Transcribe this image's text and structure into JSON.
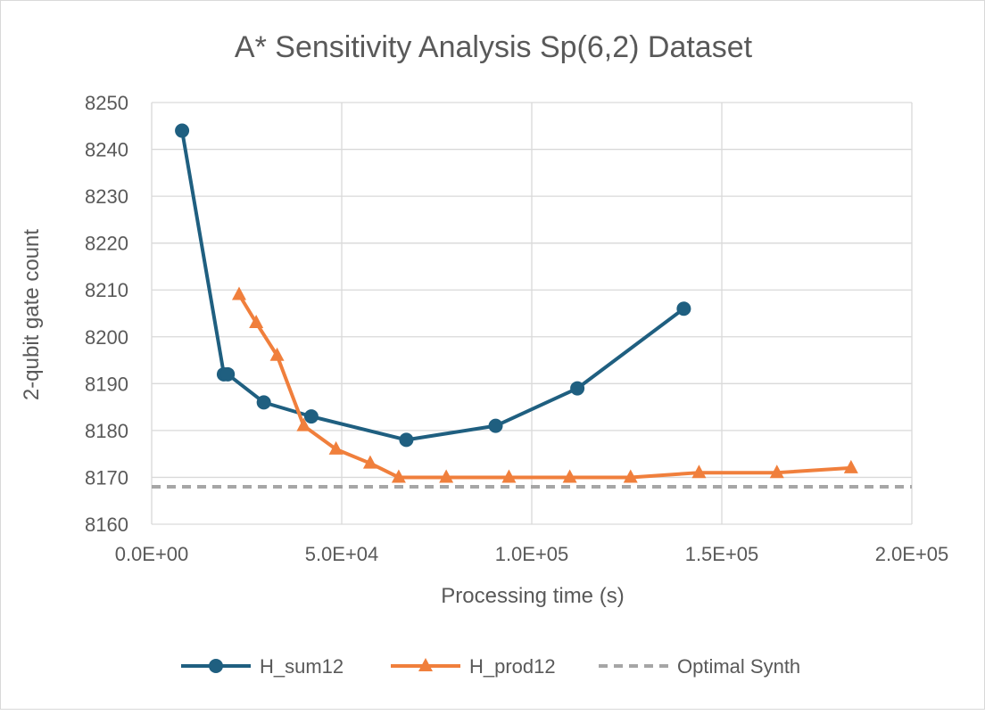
{
  "chart_data": {
    "type": "scatter",
    "title": "A* Sensitivity Analysis Sp(6,2) Dataset",
    "xlabel": "Processing time (s)",
    "ylabel": "2-qubit gate count",
    "xlim": [
      0,
      200000
    ],
    "ylim": [
      8160,
      8250
    ],
    "x_ticks": [
      0,
      50000,
      100000,
      150000,
      200000
    ],
    "x_tick_labels": [
      "0.0E+00",
      "5.0E+04",
      "1.0E+05",
      "1.5E+05",
      "2.0E+05"
    ],
    "y_ticks": [
      8160,
      8170,
      8180,
      8190,
      8200,
      8210,
      8220,
      8230,
      8240,
      8250
    ],
    "y_tick_labels": [
      "8160",
      "8170",
      "8180",
      "8190",
      "8200",
      "8210",
      "8220",
      "8230",
      "8240",
      "8250"
    ],
    "grid": true,
    "legend_position": "bottom",
    "series": [
      {
        "name": "H_sum12",
        "color": "#1f5f80",
        "marker": "circle",
        "line": "solid",
        "x": [
          8000,
          19000,
          20000,
          29500,
          42000,
          67000,
          90500,
          112000,
          140000
        ],
        "y": [
          8244,
          8192,
          8192,
          8186,
          8183,
          8178,
          8181,
          8189,
          8206
        ]
      },
      {
        "name": "H_prod12",
        "color": "#f07f3c",
        "marker": "triangle",
        "line": "solid",
        "x": [
          23000,
          27500,
          33000,
          40000,
          48500,
          57500,
          65000,
          77500,
          94000,
          110000,
          126000,
          144000,
          164500,
          184000
        ],
        "y": [
          8209,
          8203,
          8196,
          8181,
          8176,
          8173,
          8170,
          8170,
          8170,
          8170,
          8170,
          8171,
          8171,
          8172
        ]
      },
      {
        "name": "Optimal Synth",
        "color": "#a6a6a6",
        "marker": "none",
        "line": "dashed",
        "x": [
          0,
          200000
        ],
        "y": [
          8168,
          8168
        ]
      }
    ]
  }
}
